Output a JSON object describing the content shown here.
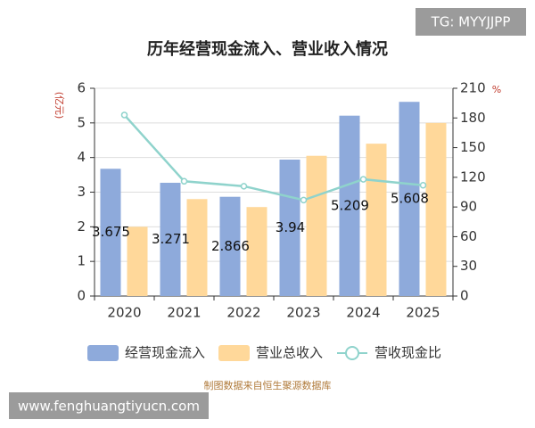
{
  "chart_data": {
    "type": "bar",
    "title": "历年经营现金流入、营业收入情况",
    "y_label": "(亿元)",
    "y2_label": "%",
    "categories": [
      "2020",
      "2021",
      "2022",
      "2023",
      "2024",
      "2025"
    ],
    "series": [
      {
        "name": "经营现金流入",
        "type": "bar",
        "color": "#8eaadb",
        "values": [
          3.675,
          3.271,
          2.866,
          3.94,
          5.209,
          5.608
        ],
        "show_labels": true
      },
      {
        "name": "营业总收入",
        "type": "bar",
        "color": "#ffd89a",
        "values": [
          2.0,
          2.8,
          2.57,
          4.05,
          4.4,
          5.0
        ]
      },
      {
        "name": "营收现金比",
        "type": "line",
        "axis": "y2",
        "color": "#8fd3cc",
        "values": [
          183,
          116,
          111,
          97,
          118,
          112
        ]
      }
    ],
    "ylim": [
      0,
      6
    ],
    "yticks": [
      0,
      1,
      2,
      3,
      4,
      5,
      6
    ],
    "y2lim": [
      0,
      210
    ],
    "y2ticks": [
      0,
      30,
      60,
      90,
      120,
      150,
      180,
      210
    ],
    "grid": true,
    "source": "制图数据来自恒生聚源数据库"
  },
  "watermarks": [
    "TG: MYYJJPP",
    "www.fenghuangtiyucn.com"
  ]
}
